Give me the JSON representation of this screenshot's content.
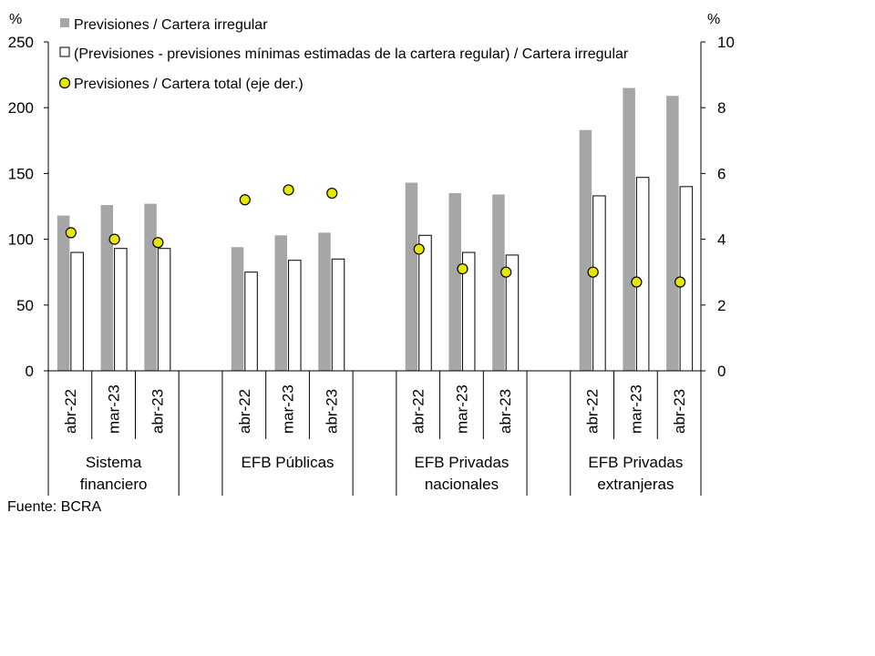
{
  "chart_data": {
    "type": "bar",
    "groups": [
      "Sistema\nfinanciero",
      "EFB Públicas",
      "EFB Privadas\nnacionales",
      "EFB Privadas\nextranjeras"
    ],
    "periods": [
      "abr-22",
      "mar-23",
      "abr-23"
    ],
    "left_axis": {
      "unit": "%",
      "min": 0,
      "max": 250,
      "step": 50
    },
    "right_axis": {
      "unit": "%",
      "min": 0,
      "max": 10,
      "step": 2
    },
    "series": [
      {
        "name": "Previsiones / Cartera irregular",
        "type": "bar",
        "axis": "left",
        "color": "#a6a6a6",
        "values": [
          [
            118,
            126,
            127
          ],
          [
            94,
            103,
            105
          ],
          [
            143,
            135,
            134
          ],
          [
            183,
            215,
            209
          ]
        ]
      },
      {
        "name": "(Previsiones - previsiones mínimas estimadas de la cartera regular) / Cartera irregular",
        "type": "bar",
        "axis": "left",
        "color": "#ffffff",
        "values": [
          [
            90,
            93,
            93
          ],
          [
            75,
            84,
            85
          ],
          [
            103,
            90,
            88
          ],
          [
            133,
            147,
            140
          ]
        ]
      },
      {
        "name": "Previsiones / Cartera total (eje der.)",
        "type": "scatter",
        "axis": "right",
        "color": "#e6e600",
        "values": [
          [
            4.2,
            4.0,
            3.9
          ],
          [
            5.2,
            5.5,
            5.4
          ],
          [
            3.7,
            3.1,
            3.0
          ],
          [
            3.0,
            2.7,
            2.7
          ]
        ]
      }
    ]
  },
  "source": "Fuente: BCRA"
}
